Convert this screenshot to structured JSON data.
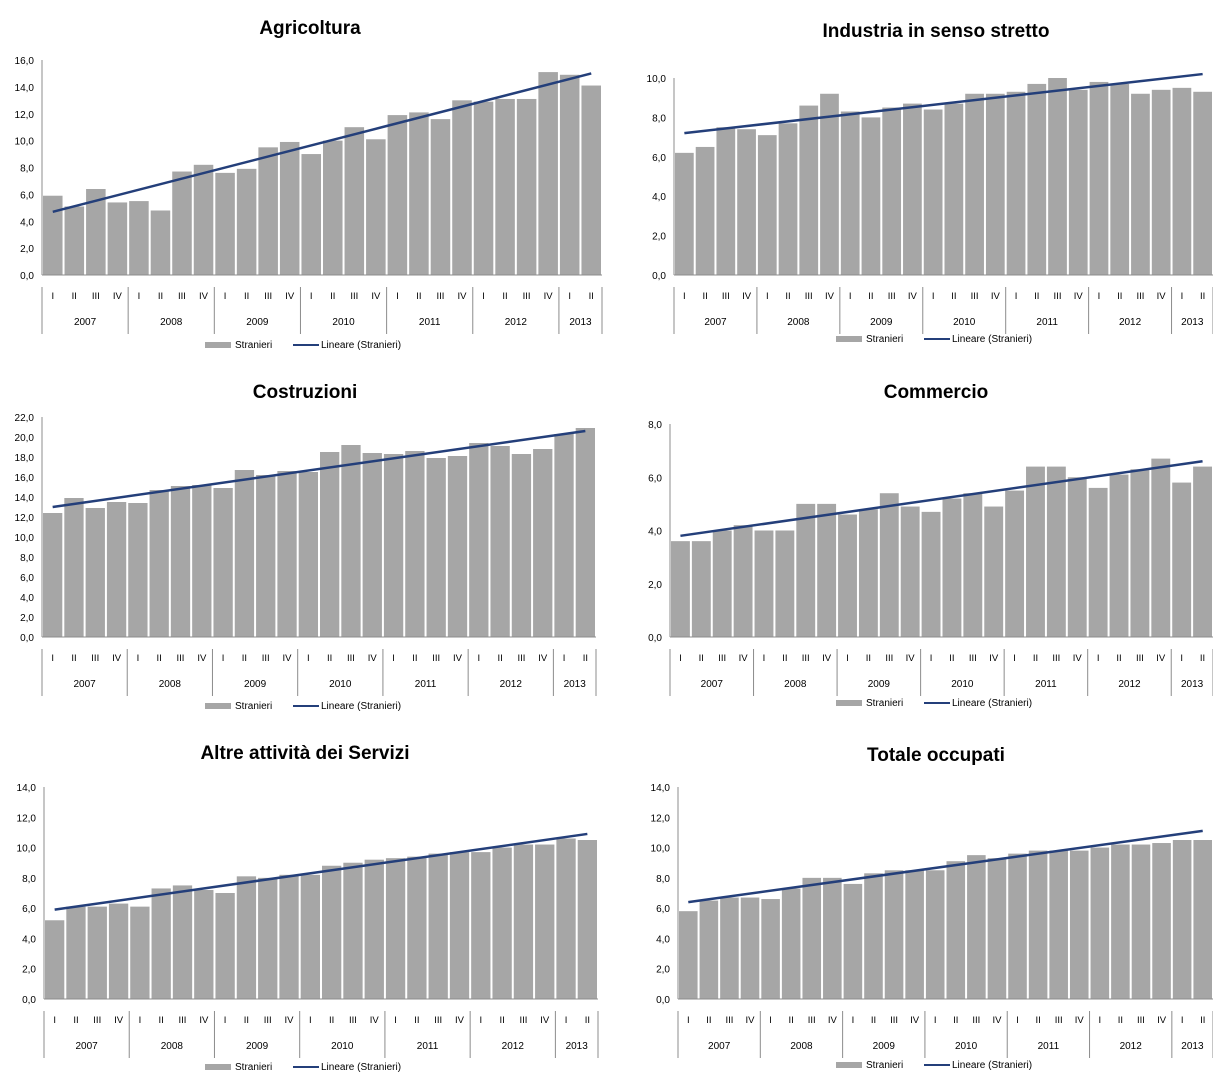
{
  "legend": {
    "bar_label": "Stranieri",
    "line_label": "Lineare (Stranieri)"
  },
  "quarters": [
    "I",
    "II",
    "III",
    "IV",
    "I",
    "II",
    "III",
    "IV",
    "I",
    "II",
    "III",
    "IV",
    "I",
    "II",
    "III",
    "IV",
    "I",
    "II",
    "III",
    "IV",
    "I",
    "II",
    "III",
    "IV",
    "I",
    "II"
  ],
  "years": [
    {
      "label": "2007",
      "count": 4
    },
    {
      "label": "2008",
      "count": 4
    },
    {
      "label": "2009",
      "count": 4
    },
    {
      "label": "2010",
      "count": 4
    },
    {
      "label": "2011",
      "count": 4
    },
    {
      "label": "2012",
      "count": 4
    },
    {
      "label": "2013",
      "count": 2
    }
  ],
  "colors": {
    "bar": "#a6a6a6",
    "trend": "#243f7a"
  },
  "chart_data": [
    {
      "type": "bar",
      "title": "Agricoltura",
      "ylim": [
        0,
        16
      ],
      "yticks": [
        "0,0",
        "2,0",
        "4,0",
        "6,0",
        "8,0",
        "10,0",
        "12,0",
        "14,0",
        "16,0"
      ],
      "series": [
        {
          "name": "Stranieri",
          "values": [
            5.9,
            5.1,
            6.4,
            5.4,
            5.5,
            4.8,
            7.7,
            8.2,
            7.6,
            7.9,
            9.5,
            9.9,
            9.0,
            10.0,
            11.0,
            10.1,
            11.9,
            12.1,
            11.6,
            13.0,
            12.9,
            13.1,
            13.1,
            15.1,
            14.9,
            14.1
          ]
        }
      ],
      "trend": {
        "name": "Lineare (Stranieri)",
        "start": 4.7,
        "end": 15.0
      }
    },
    {
      "type": "bar",
      "title": "Industria in senso stretto",
      "ylim": [
        0,
        10
      ],
      "yticks": [
        "0,0",
        "2,0",
        "4,0",
        "6,0",
        "8,0",
        "10,0"
      ],
      "series": [
        {
          "name": "Stranieri",
          "values": [
            6.2,
            6.5,
            7.5,
            7.4,
            7.1,
            7.7,
            8.6,
            9.2,
            8.3,
            8.0,
            8.5,
            8.7,
            8.4,
            8.7,
            9.2,
            9.2,
            9.3,
            9.7,
            10.0,
            9.4,
            9.8,
            9.7,
            9.2,
            9.4,
            9.5,
            9.3
          ]
        }
      ],
      "trend": {
        "name": "Lineare (Stranieri)",
        "start": 7.2,
        "end": 10.2
      }
    },
    {
      "type": "bar",
      "title": "Costruzioni",
      "ylim": [
        0,
        22
      ],
      "yticks": [
        "0,0",
        "2,0",
        "4,0",
        "6,0",
        "8,0",
        "10,0",
        "12,0",
        "14,0",
        "16,0",
        "18,0",
        "20,0",
        "22,0"
      ],
      "series": [
        {
          "name": "Stranieri",
          "values": [
            12.4,
            13.9,
            12.9,
            13.5,
            13.4,
            14.7,
            15.1,
            15.2,
            14.9,
            16.7,
            16.2,
            16.6,
            16.5,
            18.5,
            19.2,
            18.4,
            18.3,
            18.6,
            17.9,
            18.1,
            19.4,
            19.1,
            18.3,
            18.8,
            20.3,
            20.9
          ]
        }
      ],
      "trend": {
        "name": "Lineare (Stranieri)",
        "start": 13.0,
        "end": 20.6
      }
    },
    {
      "type": "bar",
      "title": "Commercio",
      "ylim": [
        0,
        8
      ],
      "yticks": [
        "0,0",
        "2,0",
        "4,0",
        "6,0",
        "8,0"
      ],
      "series": [
        {
          "name": "Stranieri",
          "values": [
            3.6,
            3.6,
            4.0,
            4.2,
            4.0,
            4.0,
            5.0,
            5.0,
            4.6,
            4.8,
            5.4,
            4.9,
            4.7,
            5.2,
            5.4,
            4.9,
            5.5,
            6.4,
            6.4,
            6.0,
            5.6,
            6.1,
            6.3,
            6.7,
            5.8,
            6.4
          ]
        }
      ],
      "trend": {
        "name": "Lineare (Stranieri)",
        "start": 3.8,
        "end": 6.6
      }
    },
    {
      "type": "bar",
      "title": "Altre attività dei Servizi",
      "ylim": [
        0,
        14
      ],
      "yticks": [
        "0,0",
        "2,0",
        "4,0",
        "6,0",
        "8,0",
        "10,0",
        "12,0",
        "14,0"
      ],
      "series": [
        {
          "name": "Stranieri",
          "values": [
            5.2,
            6.1,
            6.1,
            6.3,
            6.1,
            7.3,
            7.5,
            7.2,
            7.0,
            8.1,
            8.0,
            8.2,
            8.2,
            8.8,
            9.0,
            9.2,
            9.3,
            9.4,
            9.6,
            9.7,
            9.7,
            10.0,
            10.2,
            10.2,
            10.6,
            10.5
          ]
        }
      ],
      "trend": {
        "name": "Lineare (Stranieri)",
        "start": 5.9,
        "end": 10.9
      }
    },
    {
      "type": "bar",
      "title": "Totale occupati",
      "ylim": [
        0,
        14
      ],
      "yticks": [
        "0,0",
        "2,0",
        "4,0",
        "6,0",
        "8,0",
        "10,0",
        "12,0",
        "14,0"
      ],
      "series": [
        {
          "name": "Stranieri",
          "values": [
            5.8,
            6.5,
            6.7,
            6.7,
            6.6,
            7.3,
            8.0,
            8.0,
            7.6,
            8.3,
            8.5,
            8.5,
            8.5,
            9.1,
            9.5,
            9.3,
            9.6,
            9.8,
            9.8,
            9.8,
            10.0,
            10.2,
            10.2,
            10.3,
            10.5,
            10.5
          ]
        }
      ],
      "trend": {
        "name": "Lineare (Stranieri)",
        "start": 6.4,
        "end": 11.1
      }
    }
  ]
}
